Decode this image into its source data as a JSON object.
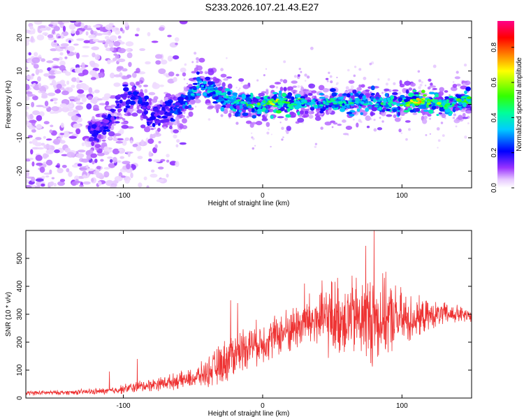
{
  "title": "S233.2026.107.21.43.E27",
  "chart_data": [
    {
      "type": "heatmap",
      "title": "S233.2026.107.21.43.E27",
      "xlabel": "Height of straight line (km)",
      "ylabel": "Frequency (Hz)",
      "xlim": [
        -170,
        150
      ],
      "ylim": [
        -25,
        25
      ],
      "xticks": [
        "-100",
        "0",
        "100"
      ],
      "yticks": [
        "-20",
        "-10",
        "0",
        "10",
        "20"
      ],
      "colorbar_label": "Normalized spectral amplitude",
      "colorbar_ticks": [
        "0.0",
        "0.2",
        "0.4",
        "0.6",
        "0.8"
      ],
      "colorbar_range": [
        0,
        0.95
      ],
      "ridge": {
        "x": [
          -120,
          -110,
          -100,
          -90,
          -80,
          -70,
          -60,
          -50,
          -45,
          -40,
          -30,
          -20,
          -10,
          0,
          10,
          20,
          30,
          40,
          50,
          60,
          70,
          80,
          90,
          100,
          110,
          120,
          130,
          140,
          150
        ],
        "freq": [
          -8,
          -5,
          1,
          3,
          -4,
          -2,
          -1,
          3,
          7,
          5,
          3,
          1,
          0,
          0,
          1,
          0,
          1,
          0,
          1,
          0,
          1,
          0,
          1,
          0,
          1,
          1,
          0,
          1,
          1
        ],
        "amplitude": [
          0.15,
          0.2,
          0.2,
          0.25,
          0.15,
          0.2,
          0.3,
          0.4,
          0.45,
          0.45,
          0.4,
          0.5,
          0.5,
          0.6,
          0.7,
          0.55,
          0.55,
          0.4,
          0.5,
          0.5,
          0.45,
          0.5,
          0.5,
          0.55,
          0.75,
          0.8,
          0.6,
          0.55,
          0.6
        ]
      },
      "noise_region": [
        -170,
        -95
      ]
    },
    {
      "type": "line",
      "xlabel": "Height of straight line (km)",
      "ylabel": "SNR (10 * v/v)",
      "xlim": [
        -170,
        150
      ],
      "ylim": [
        0,
        600
      ],
      "xticks": [
        "-100",
        "0",
        "100"
      ],
      "yticks": [
        "0",
        "100",
        "200",
        "300",
        "400",
        "500"
      ],
      "line_color": "#ee3333",
      "series": [
        {
          "name": "SNR",
          "envelope_x": [
            -170,
            -140,
            -110,
            -90,
            -70,
            -50,
            -40,
            -30,
            -20,
            -10,
            0,
            10,
            20,
            30,
            40,
            50,
            60,
            70,
            80,
            90,
            100,
            110,
            120,
            130,
            140,
            150
          ],
          "mean": [
            18,
            20,
            25,
            40,
            55,
            70,
            90,
            120,
            160,
            190,
            200,
            225,
            245,
            270,
            280,
            285,
            290,
            285,
            280,
            290,
            280,
            285,
            295,
            300,
            300,
            290
          ],
          "spread": [
            10,
            10,
            15,
            25,
            30,
            40,
            60,
            90,
            100,
            90,
            90,
            90,
            100,
            110,
            140,
            170,
            170,
            180,
            200,
            160,
            130,
            90,
            60,
            50,
            40,
            30
          ],
          "peaks": [
            {
              "x": -110,
              "y": 95
            },
            {
              "x": -90,
              "y": 140
            },
            {
              "x": -23,
              "y": 350
            },
            {
              "x": -18,
              "y": 340
            },
            {
              "x": 30,
              "y": 410
            },
            {
              "x": 74,
              "y": 545
            },
            {
              "x": 80,
              "y": 600
            }
          ]
        }
      ]
    }
  ]
}
